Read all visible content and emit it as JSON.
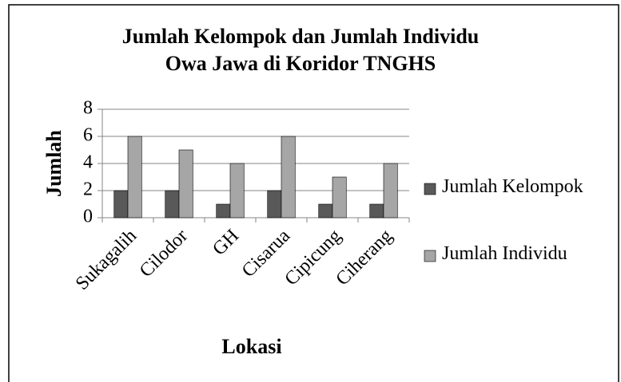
{
  "chart_data": {
    "type": "bar",
    "title": [
      "Jumlah Kelompok dan Jumlah Individu",
      "Owa Jawa di Koridor TNGHS"
    ],
    "x_label": "Lokasi",
    "y_label": "Jumlah",
    "categories": [
      "Sukagalih",
      "Cilodor",
      "GH",
      "Cisarua",
      "Cipicung",
      "Ciherang"
    ],
    "series": [
      {
        "name": "Jumlah Kelompok",
        "color": "#595959",
        "values": [
          2,
          2,
          1,
          2,
          1,
          1
        ]
      },
      {
        "name": "Jumlah Individu",
        "color": "#a6a6a6",
        "values": [
          6,
          5,
          4,
          6,
          3,
          4
        ]
      }
    ],
    "ylim": [
      0,
      8
    ],
    "yticks": [
      0,
      2,
      4,
      6,
      8
    ],
    "grid": true,
    "legend": "right"
  }
}
